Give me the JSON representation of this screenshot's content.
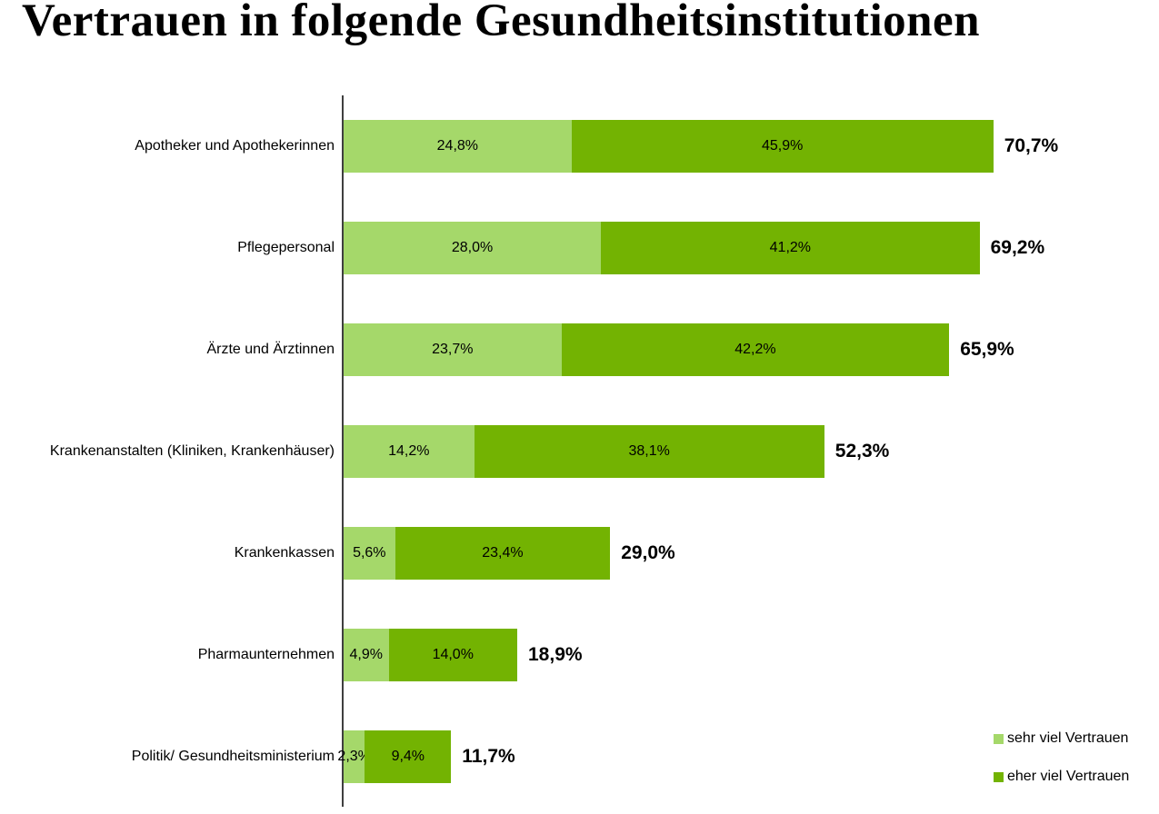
{
  "chart_data": {
    "type": "bar",
    "orientation": "horizontal-stacked",
    "title": "Vertrauen in folgende Gesundheitsinstitutionen",
    "categories": [
      "Apotheker und Apothekerinnen",
      "Pflegepersonal",
      "Ärzte und Ärztinnen",
      "Krankenanstalten (Kliniken, Krankenhäuser)",
      "Krankenkassen",
      "Pharmaunternehmen",
      "Politik/ Gesundheitsministerium"
    ],
    "series": [
      {
        "name": "sehr viel Vertrauen",
        "color": "#A5D86A",
        "values": [
          24.8,
          28.0,
          23.7,
          14.2,
          5.6,
          4.9,
          2.3
        ],
        "labels": [
          "24,8%",
          "28,0%",
          "23,7%",
          "14,2%",
          "5,6%",
          "4,9%",
          "2,3%"
        ]
      },
      {
        "name": "eher viel Vertrauen",
        "color": "#73B302",
        "values": [
          45.9,
          41.2,
          42.2,
          38.1,
          23.4,
          14.0,
          9.4
        ],
        "labels": [
          "45,9%",
          "41,2%",
          "42,2%",
          "38,1%",
          "23,4%",
          "14,0%",
          "9,4%"
        ]
      }
    ],
    "totals": {
      "values": [
        70.7,
        69.2,
        65.9,
        52.3,
        29.0,
        18.9,
        11.7
      ],
      "labels": [
        "70,7%",
        "69,2%",
        "65,9%",
        "52,3%",
        "29,0%",
        "18,9%",
        "11,7%"
      ]
    },
    "xlim": [
      0,
      77
    ],
    "grid": false,
    "legend_position": "bottom-right",
    "axis_color": "#3f3f3f",
    "background_color": "#ffffff"
  }
}
